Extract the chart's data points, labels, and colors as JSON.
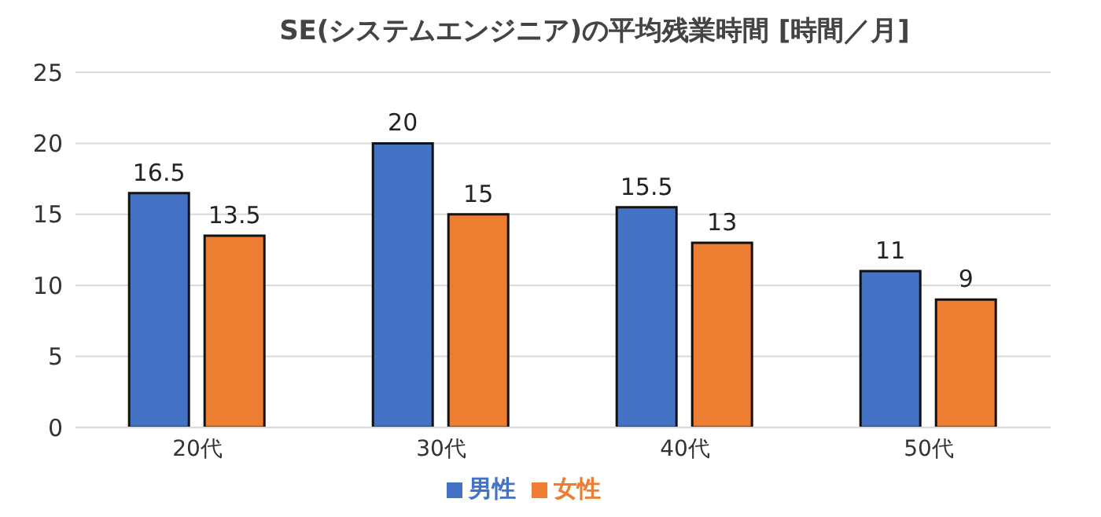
{
  "chart_data": {
    "type": "bar",
    "title": "SE(システムエンジニア)の平均残業時間 [時間／月]",
    "categories": [
      "20代",
      "30代",
      "40代",
      "50代"
    ],
    "series": [
      {
        "name": "男性",
        "color": "#4472c4",
        "values": [
          16.5,
          20,
          15.5,
          11
        ]
      },
      {
        "name": "女性",
        "color": "#ed7d31",
        "values": [
          13.5,
          15,
          13,
          9
        ]
      }
    ],
    "ylim": [
      0,
      25
    ],
    "yticks": [
      0,
      5,
      10,
      15,
      20,
      25
    ],
    "grid": "y",
    "legend": "bottom",
    "data_labels": true
  }
}
